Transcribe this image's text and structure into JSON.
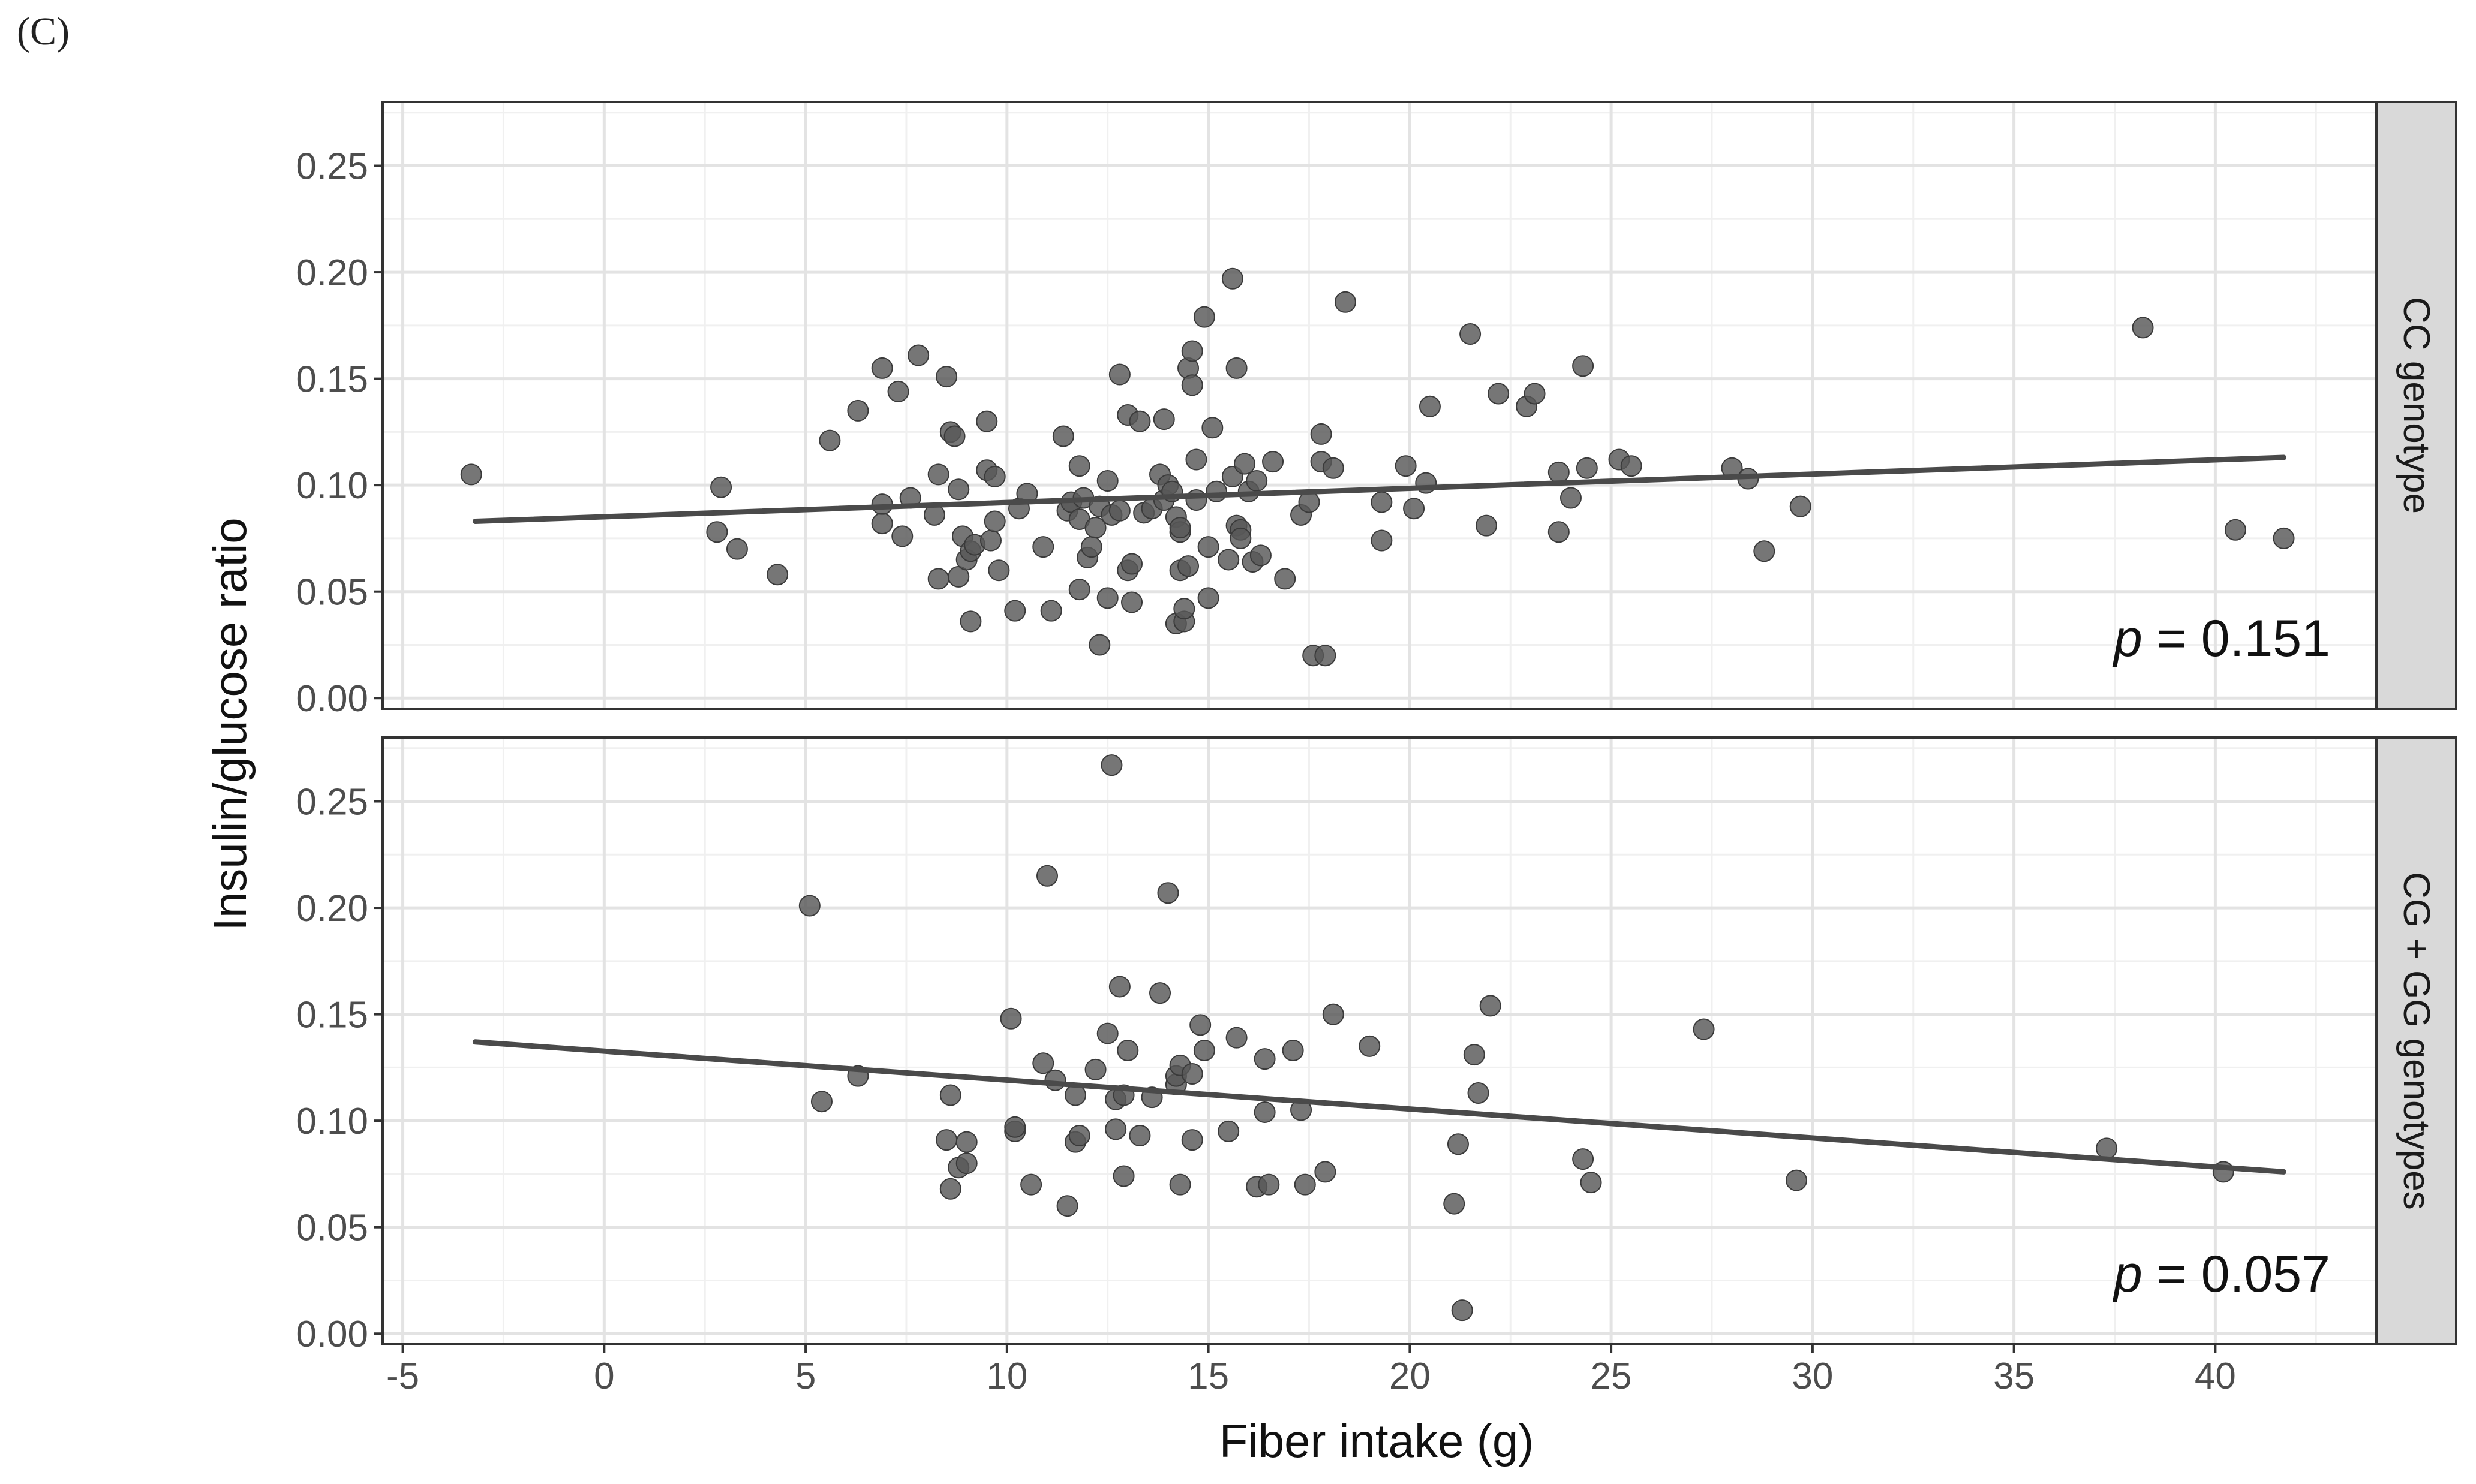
{
  "panel_label": "(C)",
  "chart_data": {
    "type": "scatter",
    "xlabel": "Fiber intake (g)",
    "ylabel": "Insulin/glucose ratio",
    "x_ticks": [
      "-5",
      "0",
      "5",
      "10",
      "15",
      "20",
      "25",
      "30",
      "35",
      "40"
    ],
    "y_ticks": [
      "0.00",
      "0.05",
      "0.10",
      "0.15",
      "0.20",
      "0.25"
    ],
    "xlim": [
      -5.5,
      44
    ],
    "ylim": [
      -0.005,
      0.28
    ],
    "grid": true,
    "trend_line_color": "#4a4a4a",
    "point_color": "#585858",
    "facets": [
      {
        "strip_label": "CC genotype",
        "annotation": {
          "italic": "p",
          "text": " = 0.151"
        },
        "trend": {
          "x": [
            -3.2,
            41.7
          ],
          "y": [
            0.083,
            0.113
          ]
        },
        "points": [
          [
            -3.3,
            0.105
          ],
          [
            2.8,
            0.078
          ],
          [
            2.9,
            0.099
          ],
          [
            3.3,
            0.07
          ],
          [
            4.3,
            0.058
          ],
          [
            5.6,
            0.121
          ],
          [
            6.3,
            0.135
          ],
          [
            6.9,
            0.155
          ],
          [
            6.9,
            0.091
          ],
          [
            6.9,
            0.082
          ],
          [
            7.3,
            0.144
          ],
          [
            7.4,
            0.076
          ],
          [
            7.6,
            0.094
          ],
          [
            7.8,
            0.161
          ],
          [
            8.2,
            0.086
          ],
          [
            8.3,
            0.105
          ],
          [
            8.3,
            0.056
          ],
          [
            8.5,
            0.151
          ],
          [
            8.6,
            0.125
          ],
          [
            8.7,
            0.123
          ],
          [
            8.8,
            0.098
          ],
          [
            8.8,
            0.057
          ],
          [
            8.9,
            0.076
          ],
          [
            9.0,
            0.065
          ],
          [
            9.1,
            0.036
          ],
          [
            9.1,
            0.069
          ],
          [
            9.2,
            0.072
          ],
          [
            9.5,
            0.107
          ],
          [
            9.5,
            0.13
          ],
          [
            9.6,
            0.074
          ],
          [
            9.7,
            0.083
          ],
          [
            9.7,
            0.104
          ],
          [
            9.8,
            0.06
          ],
          [
            10.2,
            0.041
          ],
          [
            10.3,
            0.089
          ],
          [
            10.5,
            0.096
          ],
          [
            10.9,
            0.071
          ],
          [
            11.1,
            0.041
          ],
          [
            11.4,
            0.123
          ],
          [
            11.5,
            0.088
          ],
          [
            11.6,
            0.092
          ],
          [
            11.8,
            0.109
          ],
          [
            11.8,
            0.084
          ],
          [
            11.8,
            0.051
          ],
          [
            11.9,
            0.094
          ],
          [
            12.0,
            0.066
          ],
          [
            12.1,
            0.071
          ],
          [
            12.2,
            0.08
          ],
          [
            12.3,
            0.09
          ],
          [
            12.3,
            0.025
          ],
          [
            12.5,
            0.102
          ],
          [
            12.5,
            0.047
          ],
          [
            12.6,
            0.086
          ],
          [
            12.8,
            0.088
          ],
          [
            12.8,
            0.152
          ],
          [
            13.0,
            0.06
          ],
          [
            13.0,
            0.133
          ],
          [
            13.1,
            0.045
          ],
          [
            13.1,
            0.063
          ],
          [
            13.3,
            0.13
          ],
          [
            13.4,
            0.087
          ],
          [
            13.6,
            0.089
          ],
          [
            13.8,
            0.105
          ],
          [
            13.9,
            0.093
          ],
          [
            13.9,
            0.131
          ],
          [
            14.0,
            0.1
          ],
          [
            14.1,
            0.097
          ],
          [
            14.2,
            0.035
          ],
          [
            14.2,
            0.085
          ],
          [
            14.3,
            0.078
          ],
          [
            14.3,
            0.08
          ],
          [
            14.3,
            0.06
          ],
          [
            14.4,
            0.036
          ],
          [
            14.4,
            0.042
          ],
          [
            14.5,
            0.062
          ],
          [
            14.5,
            0.155
          ],
          [
            14.6,
            0.147
          ],
          [
            14.6,
            0.163
          ],
          [
            14.7,
            0.093
          ],
          [
            14.7,
            0.112
          ],
          [
            14.9,
            0.179
          ],
          [
            15.0,
            0.047
          ],
          [
            15.0,
            0.071
          ],
          [
            15.1,
            0.127
          ],
          [
            15.2,
            0.097
          ],
          [
            15.5,
            0.065
          ],
          [
            15.6,
            0.197
          ],
          [
            15.6,
            0.104
          ],
          [
            15.7,
            0.155
          ],
          [
            15.7,
            0.081
          ],
          [
            15.8,
            0.079
          ],
          [
            15.8,
            0.075
          ],
          [
            15.9,
            0.11
          ],
          [
            16.0,
            0.097
          ],
          [
            16.1,
            0.064
          ],
          [
            16.2,
            0.102
          ],
          [
            16.3,
            0.067
          ],
          [
            16.6,
            0.111
          ],
          [
            16.9,
            0.056
          ],
          [
            17.3,
            0.086
          ],
          [
            17.5,
            0.092
          ],
          [
            17.6,
            0.02
          ],
          [
            17.8,
            0.124
          ],
          [
            17.8,
            0.111
          ],
          [
            17.9,
            0.02
          ],
          [
            18.1,
            0.108
          ],
          [
            18.4,
            0.186
          ],
          [
            19.3,
            0.074
          ],
          [
            19.3,
            0.092
          ],
          [
            19.9,
            0.109
          ],
          [
            20.1,
            0.089
          ],
          [
            20.4,
            0.101
          ],
          [
            20.5,
            0.137
          ],
          [
            21.5,
            0.171
          ],
          [
            21.9,
            0.081
          ],
          [
            22.2,
            0.143
          ],
          [
            22.9,
            0.137
          ],
          [
            23.1,
            0.143
          ],
          [
            23.7,
            0.078
          ],
          [
            23.7,
            0.106
          ],
          [
            24.0,
            0.094
          ],
          [
            24.3,
            0.156
          ],
          [
            24.4,
            0.108
          ],
          [
            25.2,
            0.112
          ],
          [
            25.5,
            0.109
          ],
          [
            28.0,
            0.108
          ],
          [
            28.4,
            0.103
          ],
          [
            28.8,
            0.069
          ],
          [
            29.7,
            0.09
          ],
          [
            38.2,
            0.174
          ],
          [
            40.5,
            0.079
          ],
          [
            41.7,
            0.075
          ]
        ]
      },
      {
        "strip_label": "CG + GG genotypes",
        "annotation": {
          "italic": "p",
          "text": " = 0.057"
        },
        "trend": {
          "x": [
            -3.2,
            41.7
          ],
          "y": [
            0.137,
            0.076
          ]
        },
        "points": [
          [
            5.1,
            0.201
          ],
          [
            5.4,
            0.109
          ],
          [
            6.3,
            0.121
          ],
          [
            8.5,
            0.091
          ],
          [
            8.6,
            0.068
          ],
          [
            8.6,
            0.112
          ],
          [
            8.8,
            0.078
          ],
          [
            9.0,
            0.08
          ],
          [
            9.0,
            0.09
          ],
          [
            10.1,
            0.148
          ],
          [
            10.2,
            0.095
          ],
          [
            10.2,
            0.097
          ],
          [
            10.6,
            0.07
          ],
          [
            10.9,
            0.127
          ],
          [
            11.0,
            0.215
          ],
          [
            11.2,
            0.119
          ],
          [
            11.5,
            0.06
          ],
          [
            11.7,
            0.112
          ],
          [
            11.7,
            0.09
          ],
          [
            11.8,
            0.093
          ],
          [
            12.2,
            0.124
          ],
          [
            12.5,
            0.141
          ],
          [
            12.6,
            0.267
          ],
          [
            12.7,
            0.096
          ],
          [
            12.7,
            0.11
          ],
          [
            12.8,
            0.163
          ],
          [
            12.9,
            0.112
          ],
          [
            12.9,
            0.074
          ],
          [
            13.0,
            0.133
          ],
          [
            13.3,
            0.093
          ],
          [
            13.6,
            0.111
          ],
          [
            13.8,
            0.16
          ],
          [
            14.0,
            0.207
          ],
          [
            14.2,
            0.117
          ],
          [
            14.2,
            0.121
          ],
          [
            14.3,
            0.126
          ],
          [
            14.3,
            0.07
          ],
          [
            14.6,
            0.091
          ],
          [
            14.6,
            0.122
          ],
          [
            14.8,
            0.145
          ],
          [
            14.9,
            0.133
          ],
          [
            15.5,
            0.095
          ],
          [
            15.7,
            0.139
          ],
          [
            16.2,
            0.069
          ],
          [
            16.4,
            0.104
          ],
          [
            16.4,
            0.129
          ],
          [
            16.5,
            0.07
          ],
          [
            17.1,
            0.133
          ],
          [
            17.3,
            0.105
          ],
          [
            17.4,
            0.07
          ],
          [
            17.9,
            0.076
          ],
          [
            18.1,
            0.15
          ],
          [
            19.0,
            0.135
          ],
          [
            21.1,
            0.061
          ],
          [
            21.2,
            0.089
          ],
          [
            21.3,
            0.011
          ],
          [
            21.6,
            0.131
          ],
          [
            21.7,
            0.113
          ],
          [
            22.0,
            0.154
          ],
          [
            24.3,
            0.082
          ],
          [
            24.5,
            0.071
          ],
          [
            27.3,
            0.143
          ],
          [
            29.6,
            0.072
          ],
          [
            37.3,
            0.087
          ],
          [
            40.2,
            0.076
          ]
        ]
      }
    ]
  }
}
